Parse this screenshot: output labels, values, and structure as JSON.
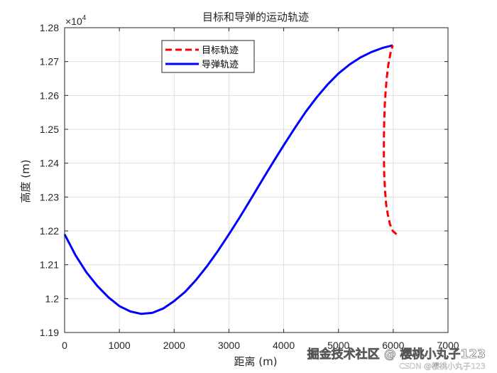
{
  "chart_data": {
    "type": "line",
    "title": "目标和导弹的运动轨迹",
    "xlabel": "距离 (m)",
    "ylabel": "高度 (m)",
    "xlim": [
      0,
      7000
    ],
    "ylim": [
      11900,
      12800
    ],
    "x_ticks": [
      0,
      1000,
      2000,
      3000,
      4000,
      5000,
      6000,
      7000
    ],
    "x_tick_labels": [
      "0",
      "1000",
      "2000",
      "3000",
      "4000",
      "5000",
      "6000",
      "7000"
    ],
    "y_ticks": [
      11900,
      12000,
      12100,
      12200,
      12300,
      12400,
      12500,
      12600,
      12700,
      12800
    ],
    "y_tick_labels": [
      "1.19",
      "1.2",
      "1.21",
      "1.22",
      "1.23",
      "1.24",
      "1.25",
      "1.26",
      "1.27",
      "1.28"
    ],
    "y_exponent_base": "×10",
    "y_exponent_power": "4",
    "grid": true,
    "legend_position": "top-left",
    "series": [
      {
        "name": "目标轨迹",
        "color": "#ff0000",
        "style": "dashed",
        "x": [
          6060,
          5990,
          5940,
          5900,
          5870,
          5850,
          5835,
          5830,
          5830,
          5835,
          5845,
          5860,
          5880,
          5910,
          5950,
          5990
        ],
        "y": [
          12190,
          12200,
          12220,
          12250,
          12280,
          12320,
          12370,
          12420,
          12470,
          12520,
          12570,
          12610,
          12650,
          12690,
          12725,
          12748
        ]
      },
      {
        "name": "导弹轨迹",
        "color": "#0000ff",
        "style": "solid",
        "x": [
          0,
          200,
          400,
          600,
          800,
          1000,
          1200,
          1400,
          1600,
          1800,
          2000,
          2200,
          2400,
          2600,
          2800,
          3000,
          3200,
          3400,
          3600,
          3800,
          4000,
          4200,
          4400,
          4600,
          4800,
          5000,
          5200,
          5400,
          5600,
          5800,
          5990
        ],
        "y": [
          12190,
          12128,
          12077,
          12037,
          12004,
          11978,
          11962,
          11955,
          11958,
          11971,
          11993,
          12020,
          12055,
          12096,
          12141,
          12190,
          12241,
          12294,
          12348,
          12401,
          12453,
          12503,
          12551,
          12594,
          12632,
          12665,
          12691,
          12712,
          12728,
          12740,
          12748
        ]
      }
    ]
  },
  "watermark": {
    "main": "掘金技术社区 @ 樱桃小丸子123",
    "small": "CSDN @樱桃小丸子123"
  }
}
